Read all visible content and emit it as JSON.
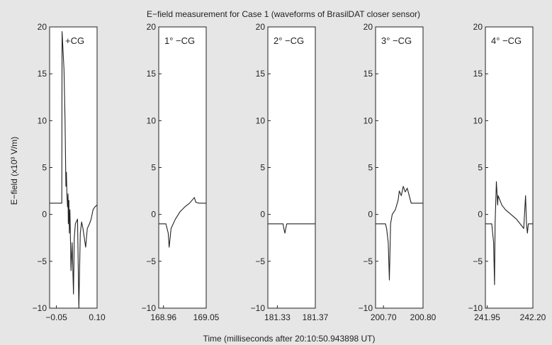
{
  "chart_data": {
    "type": "line",
    "title": "E−field measurement for Case 1 (waveforms of BrasilDAT closer sensor)",
    "ylabel": "E−field (x10³ V/m)",
    "xlabel": "Time (milliseconds after 20:10:50.943898 UT)",
    "ylim": [
      -10,
      20
    ],
    "yticks": [
      20,
      15,
      10,
      5,
      0,
      -5,
      -10
    ],
    "grid": false,
    "panels": [
      {
        "label": "+CG",
        "xlim": [
          -0.075,
          0.1
        ],
        "xtick_values": [
          -0.05,
          0.1
        ],
        "xtick_labels": [
          "−0.05",
          "0.10"
        ],
        "x": [
          -0.075,
          -0.03,
          -0.029,
          -0.022,
          -0.018,
          -0.015,
          -0.013,
          -0.011,
          -0.009,
          -0.007,
          -0.006,
          -0.004,
          -0.002,
          0.0,
          0.004,
          0.008,
          0.013,
          0.016,
          0.02,
          0.028,
          0.033,
          0.038,
          0.043,
          0.048,
          0.058,
          0.064,
          0.072,
          0.078,
          0.085,
          0.092,
          0.1
        ],
        "y": [
          1.2,
          1.2,
          19.5,
          15.5,
          10.0,
          3.0,
          4.5,
          2.0,
          0.8,
          2.2,
          -1.0,
          1.5,
          -2.0,
          0.5,
          -6.0,
          -3.0,
          -8.5,
          -2.5,
          -1.0,
          -0.5,
          -10.0,
          -2.0,
          -0.8,
          -1.5,
          -3.5,
          -1.5,
          -1.0,
          -0.5,
          0.5,
          0.8,
          1.0
        ]
      },
      {
        "label": "1° −CG",
        "xlim": [
          168.95,
          169.05
        ],
        "xtick_values": [
          168.96,
          169.05
        ],
        "xtick_labels": [
          "168.96",
          "169.05"
        ],
        "x": [
          168.95,
          168.965,
          168.97,
          168.972,
          168.974,
          168.976,
          168.985,
          168.995,
          169.005,
          169.015,
          169.025,
          169.028,
          169.035,
          169.05
        ],
        "y": [
          -1.0,
          -1.0,
          -2.0,
          -3.5,
          -2.5,
          -1.5,
          -0.5,
          0.3,
          0.8,
          1.2,
          1.8,
          1.3,
          1.2,
          1.2
        ]
      },
      {
        "label": "2° −CG",
        "xlim": [
          181.32,
          181.37
        ],
        "xtick_values": [
          181.33,
          181.37
        ],
        "xtick_labels": [
          "181.33",
          "181.37"
        ],
        "x": [
          181.32,
          181.336,
          181.337,
          181.338,
          181.339,
          181.34,
          181.37
        ],
        "y": [
          -1.0,
          -1.0,
          -1.6,
          -2.0,
          -1.4,
          -1.0,
          -1.0
        ]
      },
      {
        "label": "3° −CG",
        "xlim": [
          200.68,
          200.8
        ],
        "xtick_values": [
          200.7,
          200.8
        ],
        "xtick_labels": [
          "200.70",
          "200.80"
        ],
        "x": [
          200.68,
          200.705,
          200.708,
          200.712,
          200.715,
          200.718,
          200.722,
          200.73,
          200.737,
          200.74,
          200.745,
          200.75,
          200.755,
          200.76,
          200.765,
          200.77,
          200.78,
          200.8
        ],
        "y": [
          -1.0,
          -1.0,
          -1.5,
          -3.0,
          -7.0,
          -1.0,
          0.0,
          0.5,
          1.5,
          2.5,
          2.0,
          3.0,
          2.4,
          2.8,
          2.0,
          1.2,
          1.2,
          1.2
        ]
      },
      {
        "label": "4° −CG",
        "xlim": [
          241.94,
          242.2
        ],
        "xtick_values": [
          241.95,
          242.2
        ],
        "xtick_labels": [
          "241.95",
          "242.20"
        ],
        "x": [
          241.94,
          241.975,
          241.985,
          241.99,
          241.993,
          242.0,
          242.007,
          242.01,
          242.02,
          242.03,
          242.05,
          242.08,
          242.11,
          242.13,
          242.15,
          242.16,
          242.165,
          242.17,
          242.175,
          242.18,
          242.2
        ],
        "y": [
          -1.0,
          -1.0,
          -3.0,
          -7.5,
          -1.0,
          3.5,
          1.0,
          2.0,
          1.5,
          1.0,
          0.5,
          0.0,
          -0.5,
          -1.0,
          -1.5,
          2.0,
          -1.0,
          -2.0,
          -1.0,
          -1.0,
          -1.0
        ]
      }
    ]
  }
}
